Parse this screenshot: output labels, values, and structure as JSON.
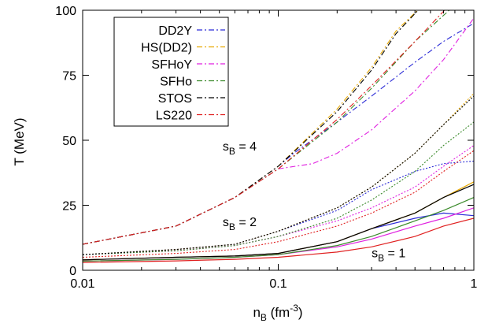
{
  "chart_data": {
    "type": "line",
    "xscale": "log",
    "xlim": [
      0.01,
      1
    ],
    "ylim": [
      0,
      100
    ],
    "xlabel": "n_B (fm^-3)",
    "xlabel_main": "n",
    "xlabel_sub": "B",
    "xlabel_unit_open": " (fm",
    "xlabel_unit_sup": "-3",
    "xlabel_unit_close": ")",
    "ylabel": "T (MeV)",
    "x_ticks": [
      {
        "value": 0.01,
        "label": "0.01"
      },
      {
        "value": 0.1,
        "label": "0.1"
      },
      {
        "value": 1,
        "label": "1"
      }
    ],
    "y_ticks": [
      {
        "value": 0,
        "label": "0"
      },
      {
        "value": 25,
        "label": "25"
      },
      {
        "value": 50,
        "label": "50"
      },
      {
        "value": 75,
        "label": "75"
      },
      {
        "value": 100,
        "label": "100"
      }
    ],
    "grid": false,
    "legend_position": "top-left",
    "legend": [
      {
        "name": "DD2Y",
        "color": "#2b2bd6"
      },
      {
        "name": "HS(DD2)",
        "color": "#e8a800"
      },
      {
        "name": "SFHoY",
        "color": "#e020e0"
      },
      {
        "name": "SFHo",
        "color": "#3a8a2a"
      },
      {
        "name": "STOS",
        "color": "#000000"
      },
      {
        "name": "LS220",
        "color": "#e02020"
      }
    ],
    "annotations": [
      {
        "main": "s",
        "sub": "B",
        "rest": " = 4",
        "x": 0.052,
        "y": 46
      },
      {
        "main": "s",
        "sub": "B",
        "rest": " = 2",
        "x": 0.052,
        "y": 17
      },
      {
        "main": "s",
        "sub": "B",
        "rest": " = 1",
        "x": 0.3,
        "y": 5
      }
    ],
    "series": [
      {
        "eos": "DD2Y",
        "entropy": 4,
        "color": "#2b2bd6",
        "style": "dashdot",
        "x": [
          0.01,
          0.03,
          0.06,
          0.1,
          0.12,
          0.2,
          0.3,
          0.5,
          0.7,
          1.0
        ],
        "y": [
          10,
          17,
          28,
          40,
          45,
          57,
          67,
          80,
          88,
          95
        ]
      },
      {
        "eos": "HS(DD2)",
        "entropy": 4,
        "color": "#e8a800",
        "style": "dashdot",
        "x": [
          0.01,
          0.03,
          0.06,
          0.1,
          0.2,
          0.3,
          0.4,
          0.55
        ],
        "y": [
          10,
          17,
          28,
          40,
          62,
          78,
          92,
          102
        ]
      },
      {
        "eos": "SFHoY",
        "entropy": 4,
        "color": "#e020e0",
        "style": "dashdot",
        "x": [
          0.01,
          0.03,
          0.06,
          0.1,
          0.15,
          0.2,
          0.3,
          0.5,
          0.7,
          1.0
        ],
        "y": [
          10,
          17,
          28,
          39,
          41,
          45,
          54,
          69,
          81,
          97
        ]
      },
      {
        "eos": "SFHo",
        "entropy": 4,
        "color": "#3a8a2a",
        "style": "dashdot",
        "x": [
          0.01,
          0.03,
          0.06,
          0.1,
          0.2,
          0.3,
          0.5,
          0.8
        ],
        "y": [
          10,
          17,
          28,
          39,
          57,
          70,
          88,
          102
        ]
      },
      {
        "eos": "STOS",
        "entropy": 4,
        "color": "#000000",
        "style": "dashdot",
        "x": [
          0.01,
          0.03,
          0.06,
          0.1,
          0.2,
          0.3,
          0.4,
          0.55
        ],
        "y": [
          10,
          17,
          28,
          40,
          61,
          77,
          91,
          102
        ]
      },
      {
        "eos": "LS220",
        "entropy": 4,
        "color": "#e02020",
        "style": "dashdot",
        "x": [
          0.01,
          0.03,
          0.06,
          0.1,
          0.2,
          0.3,
          0.5,
          0.75
        ],
        "y": [
          10,
          17,
          28,
          39,
          58,
          71,
          88,
          102
        ]
      },
      {
        "eos": "DD2Y",
        "entropy": 2,
        "color": "#2b2bd6",
        "style": "dotted",
        "x": [
          0.01,
          0.03,
          0.06,
          0.1,
          0.2,
          0.3,
          0.5,
          0.7,
          1.0
        ],
        "y": [
          6,
          8,
          10,
          15,
          23,
          31,
          38,
          41,
          42
        ]
      },
      {
        "eos": "HS(DD2)",
        "entropy": 2,
        "color": "#e8a800",
        "style": "dotted",
        "x": [
          0.01,
          0.03,
          0.06,
          0.1,
          0.2,
          0.3,
          0.5,
          0.7,
          1.0
        ],
        "y": [
          6,
          8,
          10,
          15,
          24,
          32,
          45,
          56,
          68
        ]
      },
      {
        "eos": "SFHoY",
        "entropy": 2,
        "color": "#e020e0",
        "style": "dotted",
        "x": [
          0.01,
          0.03,
          0.06,
          0.1,
          0.2,
          0.3,
          0.5,
          0.7,
          1.0
        ],
        "y": [
          6,
          7.5,
          9.5,
          13,
          19,
          24,
          32,
          40,
          48
        ]
      },
      {
        "eos": "SFHo",
        "entropy": 2,
        "color": "#3a8a2a",
        "style": "dotted",
        "x": [
          0.01,
          0.03,
          0.06,
          0.1,
          0.2,
          0.3,
          0.5,
          0.7,
          1.0
        ],
        "y": [
          6,
          7.5,
          9.5,
          13,
          20,
          27,
          38,
          48,
          57
        ]
      },
      {
        "eos": "STOS",
        "entropy": 2,
        "color": "#000000",
        "style": "dotted",
        "x": [
          0.01,
          0.03,
          0.06,
          0.1,
          0.2,
          0.3,
          0.5,
          0.7,
          1.0
        ],
        "y": [
          6,
          8,
          10,
          15,
          24,
          32,
          45,
          56,
          67
        ]
      },
      {
        "eos": "LS220",
        "entropy": 2,
        "color": "#e02020",
        "style": "dotted",
        "x": [
          0.01,
          0.03,
          0.06,
          0.1,
          0.2,
          0.3,
          0.5,
          0.7,
          1.0
        ],
        "y": [
          5,
          6.5,
          8,
          11,
          17,
          22,
          30,
          38,
          46
        ]
      },
      {
        "eos": "DD2Y",
        "entropy": 1,
        "color": "#2b2bd6",
        "style": "solid",
        "x": [
          0.01,
          0.03,
          0.06,
          0.1,
          0.2,
          0.3,
          0.5,
          0.7,
          1.0
        ],
        "y": [
          4,
          5,
          5.5,
          6.5,
          11,
          16,
          20,
          22,
          21
        ]
      },
      {
        "eos": "HS(DD2)",
        "entropy": 1,
        "color": "#e8a800",
        "style": "solid",
        "x": [
          0.01,
          0.03,
          0.06,
          0.1,
          0.2,
          0.3,
          0.5,
          0.7,
          1.0
        ],
        "y": [
          4,
          5,
          5.5,
          6.5,
          11,
          16,
          22,
          28,
          34
        ]
      },
      {
        "eos": "SFHoY",
        "entropy": 1,
        "color": "#e020e0",
        "style": "solid",
        "x": [
          0.01,
          0.03,
          0.06,
          0.1,
          0.2,
          0.3,
          0.5,
          0.7,
          1.0
        ],
        "y": [
          3.5,
          4.2,
          5,
          6,
          9,
          12,
          17,
          20,
          24
        ]
      },
      {
        "eos": "SFHo",
        "entropy": 1,
        "color": "#3a8a2a",
        "style": "solid",
        "x": [
          0.01,
          0.03,
          0.06,
          0.1,
          0.2,
          0.3,
          0.5,
          0.7,
          1.0
        ],
        "y": [
          3.5,
          4.2,
          5,
          6,
          9.5,
          13,
          19,
          23,
          28
        ]
      },
      {
        "eos": "STOS",
        "entropy": 1,
        "color": "#000000",
        "style": "solid",
        "x": [
          0.01,
          0.03,
          0.06,
          0.1,
          0.2,
          0.3,
          0.5,
          0.7,
          1.0
        ],
        "y": [
          4,
          5,
          5.5,
          6.5,
          11,
          16,
          22,
          28,
          33
        ]
      },
      {
        "eos": "LS220",
        "entropy": 1,
        "color": "#e02020",
        "style": "solid",
        "x": [
          0.01,
          0.03,
          0.06,
          0.1,
          0.2,
          0.3,
          0.5,
          0.7,
          1.0
        ],
        "y": [
          3,
          3.6,
          4.2,
          5,
          7,
          9,
          13,
          17,
          20
        ]
      }
    ]
  }
}
